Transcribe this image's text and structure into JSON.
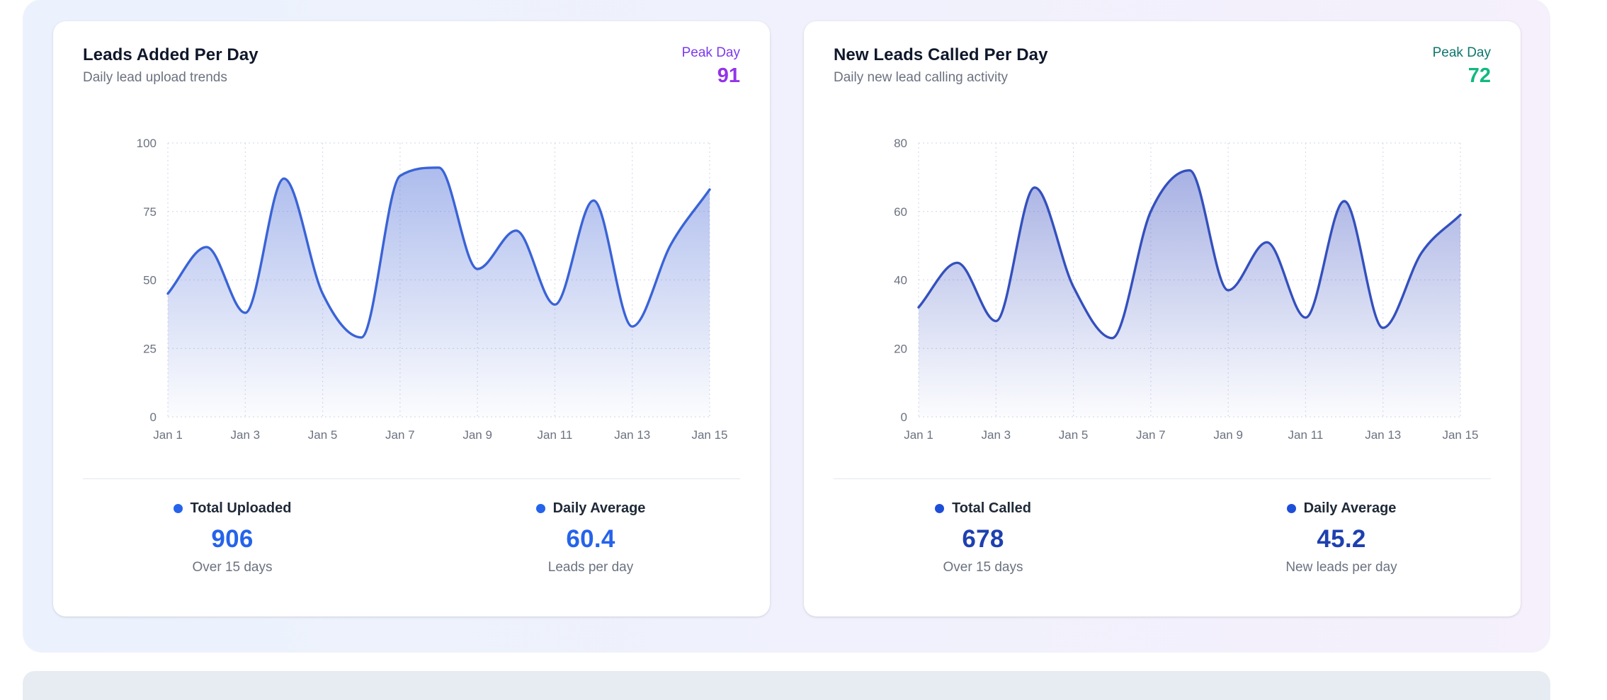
{
  "page": {
    "section_gradient_left": "#ebf2fd",
    "section_gradient_right": "#f5f0fb",
    "bottom_strip_color": "#e7ebf2"
  },
  "cards": [
    {
      "title": "Leads Added Per Day",
      "subtitle": "Daily lead upload trends",
      "peak": {
        "label": "Peak Day",
        "value": "91",
        "label_color": "#7c3aed",
        "value_color": "#9333ea"
      },
      "accent_dot": "#2563eb",
      "accent_value": "#2563eb",
      "stats": [
        {
          "label": "Total Uploaded",
          "value": "906",
          "sub": "Over 15 days"
        },
        {
          "label": "Daily Average",
          "value": "60.4",
          "sub": "Leads per day"
        }
      ]
    },
    {
      "title": "New Leads Called Per Day",
      "subtitle": "Daily new lead calling activity",
      "peak": {
        "label": "Peak Day",
        "value": "72",
        "label_color": "#0f766e",
        "value_color": "#10b981"
      },
      "accent_dot": "#1d4ed8",
      "accent_value": "#1e40af",
      "stats": [
        {
          "label": "Total Called",
          "value": "678",
          "sub": "Over 15 days"
        },
        {
          "label": "Daily Average",
          "value": "45.2",
          "sub": "New leads per day"
        }
      ]
    }
  ],
  "chart_data": [
    {
      "type": "area",
      "title": "Leads Added Per Day",
      "x": [
        "Jan 1",
        "Jan 2",
        "Jan 3",
        "Jan 4",
        "Jan 5",
        "Jan 6",
        "Jan 7",
        "Jan 8",
        "Jan 9",
        "Jan 10",
        "Jan 11",
        "Jan 12",
        "Jan 13",
        "Jan 14",
        "Jan 15"
      ],
      "values": [
        45,
        62,
        38,
        87,
        45,
        29,
        88,
        91,
        54,
        68,
        41,
        79,
        33,
        63,
        83
      ],
      "xticks": [
        "Jan 1",
        "Jan 3",
        "Jan 5",
        "Jan 7",
        "Jan 9",
        "Jan 11",
        "Jan 13",
        "Jan 15"
      ],
      "yticks": [
        0,
        25,
        50,
        75,
        100
      ],
      "ylim": [
        0,
        100
      ],
      "total": 906,
      "average": 60.4,
      "peak": 91,
      "line_color": "#3a63d6",
      "fill_color": "#5b79da",
      "grid_color": "#d7dded",
      "tick_color": "#6b7280",
      "grid_style": "dotted",
      "legend_position": "none"
    },
    {
      "type": "area",
      "title": "New Leads Called Per Day",
      "x": [
        "Jan 1",
        "Jan 2",
        "Jan 3",
        "Jan 4",
        "Jan 5",
        "Jan 6",
        "Jan 7",
        "Jan 8",
        "Jan 9",
        "Jan 10",
        "Jan 11",
        "Jan 12",
        "Jan 13",
        "Jan 14",
        "Jan 15"
      ],
      "values": [
        32,
        45,
        28,
        67,
        38,
        23,
        60,
        72,
        37,
        51,
        29,
        63,
        26,
        48,
        59
      ],
      "xticks": [
        "Jan 1",
        "Jan 3",
        "Jan 5",
        "Jan 7",
        "Jan 9",
        "Jan 11",
        "Jan 13",
        "Jan 15"
      ],
      "yticks": [
        0,
        20,
        40,
        60,
        80
      ],
      "ylim": [
        0,
        80
      ],
      "total": 678,
      "average": 45.2,
      "peak": 72,
      "line_color": "#3450bd",
      "fill_color": "#5064c8",
      "grid_color": "#d7dded",
      "tick_color": "#6b7280",
      "grid_style": "dotted",
      "legend_position": "none"
    }
  ]
}
